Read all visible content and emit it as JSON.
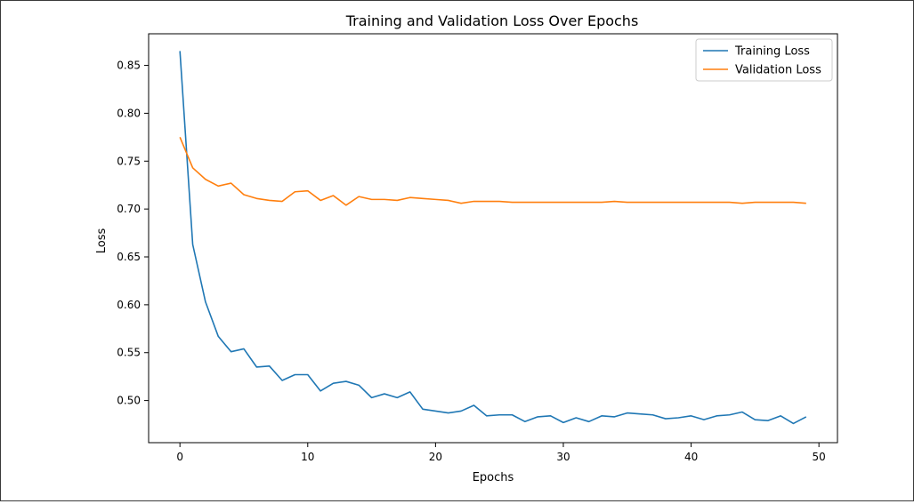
{
  "chart_data": {
    "type": "line",
    "title": "Training and Validation Loss Over Epochs",
    "xlabel": "Epochs",
    "ylabel": "Loss",
    "xlim": [
      -2.45,
      51.45
    ],
    "ylim": [
      0.456,
      0.883
    ],
    "xticks": [
      0,
      10,
      20,
      30,
      40,
      50
    ],
    "yticks": [
      0.5,
      0.55,
      0.6,
      0.65,
      0.7,
      0.75,
      0.8,
      0.85
    ],
    "legend_position": "top-right",
    "grid": false,
    "x": [
      0,
      1,
      2,
      3,
      4,
      5,
      6,
      7,
      8,
      9,
      10,
      11,
      12,
      13,
      14,
      15,
      16,
      17,
      18,
      19,
      20,
      21,
      22,
      23,
      24,
      25,
      26,
      27,
      28,
      29,
      30,
      31,
      32,
      33,
      34,
      35,
      36,
      37,
      38,
      39,
      40,
      41,
      42,
      43,
      44,
      45,
      46,
      47,
      48,
      49
    ],
    "series": [
      {
        "name": "Training Loss",
        "color": "#1f77b4",
        "values": [
          0.865,
          0.663,
          0.603,
          0.567,
          0.551,
          0.554,
          0.535,
          0.536,
          0.521,
          0.527,
          0.527,
          0.51,
          0.518,
          0.52,
          0.516,
          0.503,
          0.507,
          0.503,
          0.509,
          0.491,
          0.489,
          0.487,
          0.489,
          0.495,
          0.484,
          0.485,
          0.485,
          0.478,
          0.483,
          0.484,
          0.477,
          0.482,
          0.478,
          0.484,
          0.483,
          0.487,
          0.486,
          0.485,
          0.481,
          0.482,
          0.484,
          0.48,
          0.484,
          0.485,
          0.488,
          0.48,
          0.479,
          0.484,
          0.476,
          0.483
        ]
      },
      {
        "name": "Validation Loss",
        "color": "#ff7f0e",
        "values": [
          0.775,
          0.743,
          0.731,
          0.724,
          0.727,
          0.715,
          0.711,
          0.709,
          0.708,
          0.718,
          0.719,
          0.709,
          0.714,
          0.704,
          0.713,
          0.71,
          0.71,
          0.709,
          0.712,
          0.711,
          0.71,
          0.709,
          0.706,
          0.708,
          0.708,
          0.708,
          0.707,
          0.707,
          0.707,
          0.707,
          0.707,
          0.707,
          0.707,
          0.707,
          0.708,
          0.707,
          0.707,
          0.707,
          0.707,
          0.707,
          0.707,
          0.707,
          0.707,
          0.707,
          0.706,
          0.707,
          0.707,
          0.707,
          0.707,
          0.706
        ]
      }
    ]
  }
}
